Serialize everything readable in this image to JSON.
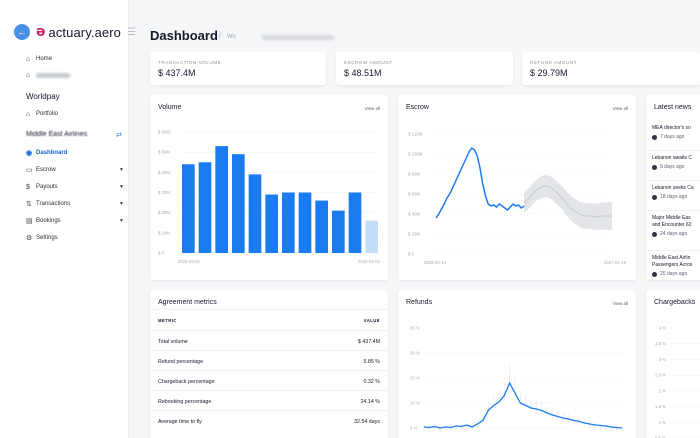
{
  "brand": {
    "logo_mark": "ǝ",
    "name": "actuary.aero"
  },
  "sidebar": {
    "home": "Home",
    "section_worldpay": "Worldpay",
    "portfolio": "Portfolio",
    "section_airline": "Middle East Airlines",
    "items": [
      {
        "label": "Dashboard",
        "active": true
      },
      {
        "label": "Escrow",
        "chevron": true
      },
      {
        "label": "Payouts",
        "chevron": true
      },
      {
        "label": "Transactions",
        "chevron": true
      },
      {
        "label": "Bookings",
        "chevron": true
      },
      {
        "label": "Settings"
      }
    ]
  },
  "header": {
    "title": "Dashboard",
    "sep": "/",
    "crumb": "Wo"
  },
  "stats": [
    {
      "label": "TRANSACTION VOLUME",
      "value": "$ 437.4M"
    },
    {
      "label": "ESCROW AMOUNT",
      "value": "$ 48.51M"
    },
    {
      "label": "REFUND AMOUNT",
      "value": "$ 29.79M"
    }
  ],
  "volume": {
    "title": "Volume",
    "view_all": "View all",
    "yticks": [
      "$ 60M",
      "$ 50M",
      "$ 40M",
      "$ 30M",
      "$ 20M",
      "$ 10M",
      "$ 0"
    ],
    "xticks": [
      "2025-03-01",
      "2026-02-01"
    ]
  },
  "escrow": {
    "title": "Escrow",
    "view_all": "View all",
    "yticks": [
      "$ 120M",
      "$ 100M",
      "$ 80M",
      "$ 60M",
      "$ 40M",
      "$ 20M",
      "$ 0"
    ],
    "xticks": [
      "2025-02-14",
      "2027-02-18"
    ]
  },
  "news": {
    "title": "Latest news",
    "items": [
      {
        "headline": [
          "MEA director's so"
        ],
        "time": "7 days ago"
      },
      {
        "headline": [
          "Lebanon awaits C"
        ],
        "time": "9 days ago"
      },
      {
        "headline": [
          "Lebanon seeks Ca"
        ],
        "time": "18 days ago"
      },
      {
        "headline": [
          "Major Middle Eas",
          "and Encounter 62"
        ],
        "time": "24 days ago"
      },
      {
        "headline": [
          "Middle East Airlin",
          "Passengers Acros"
        ],
        "time": "25 days ago"
      }
    ]
  },
  "metrics": {
    "title": "Agreement metrics",
    "col_metric": "METRIC",
    "col_value": "VALUE",
    "rows": [
      {
        "metric": "Total volume",
        "value": "$ 437.4M"
      },
      {
        "metric": "Refund percentage",
        "value": "5.85 %"
      },
      {
        "metric": "Chargeback percentage",
        "value": "0.32 %"
      },
      {
        "metric": "Rebooking percentage",
        "value": "24.14 %"
      },
      {
        "metric": "Average time to fly",
        "value": "32.54 days"
      }
    ]
  },
  "refunds": {
    "title": "Refunds",
    "view_all": "View all",
    "yticks": [
      "25 %",
      "20 %",
      "15 %",
      "10 %",
      "5 %"
    ]
  },
  "chargebacks": {
    "title": "Chargebacks",
    "yticks": [
      "4 %",
      "3.5 %",
      "3 %",
      "2.5 %",
      "2 %",
      "1.5 %",
      "1 %",
      "0.5 %"
    ]
  },
  "colors": {
    "accent": "#1a7cf0",
    "forecast": "#c4def8",
    "active_nav": "#1565d8",
    "logo": "#d21f6b"
  },
  "chart_data": [
    {
      "type": "bar",
      "title": "Volume",
      "x": [
        "2025-03-01",
        "2025-04-01",
        "2025-05-01",
        "2025-06-01",
        "2025-07-01",
        "2025-08-01",
        "2025-09-01",
        "2025-10-01",
        "2025-11-01",
        "2025-12-01",
        "2026-01-01",
        "2026-02-01"
      ],
      "values": [
        44,
        45,
        53,
        49,
        39,
        29,
        30,
        30,
        26,
        21,
        30,
        16
      ],
      "forecast_from_index": 11,
      "unit": "$M",
      "ylim": [
        0,
        60
      ],
      "grid": true
    },
    {
      "type": "line",
      "title": "Escrow",
      "unit": "$M",
      "ylim": [
        0,
        120
      ],
      "x_range": [
        "2025-02-14",
        "2027-02-18"
      ],
      "series": [
        {
          "values": [
            36,
            40,
            45,
            50,
            56,
            60,
            66,
            72,
            78,
            84,
            90,
            96,
            102,
            106,
            104,
            98,
            86,
            70,
            58,
            50,
            48,
            49,
            47,
            50,
            48,
            46,
            44,
            47,
            50,
            48,
            49,
            46,
            48
          ]
        },
        {
          "forecast": true,
          "values": [
            51,
            56,
            62,
            66,
            68,
            67,
            63,
            58,
            52,
            46,
            42,
            39,
            38,
            38,
            37,
            38,
            38,
            38
          ],
          "band": [
            10,
            14
          ]
        }
      ],
      "grid": true
    },
    {
      "type": "line",
      "title": "Refunds",
      "unit": "%",
      "ylim": [
        5,
        25
      ],
      "series": [
        {
          "values": [
            5.2,
            5.1,
            5.3,
            5.0,
            5.2,
            5.1,
            5.4,
            5.3,
            5.6,
            5.2,
            5.8,
            6.5,
            8.5,
            9.5,
            10.2,
            11.5,
            14.0,
            12.0,
            10.0,
            9.5,
            9.0,
            8.8,
            8.5,
            8.0,
            7.6,
            7.3,
            7.0,
            6.8,
            6.5,
            6.3,
            6.0,
            5.8,
            5.6,
            5.5,
            5.4,
            5.2,
            5.1,
            5.0
          ]
        }
      ],
      "grid": false
    }
  ]
}
